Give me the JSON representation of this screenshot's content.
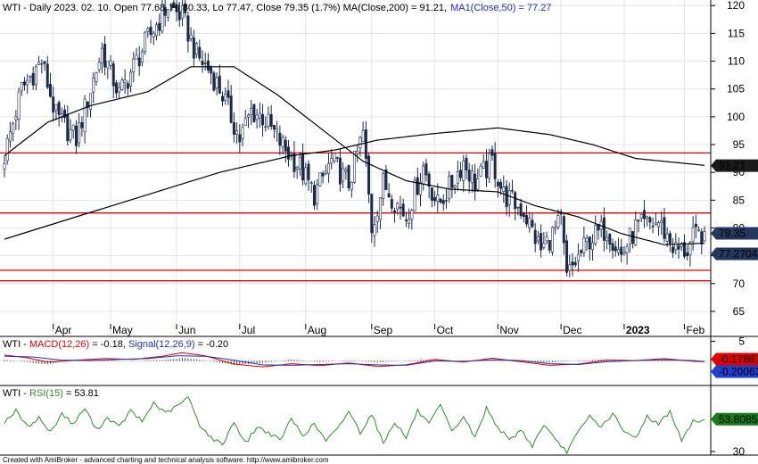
{
  "footer": "Created with AmiBroker - advanced charting and technical analysis software. http://www.amibroker.com",
  "chart_data": [
    {
      "type": "candlestick",
      "title_parts": {
        "symbol": "WTI",
        "info": " - Daily 2023. 02. 10. Open 77.68, Hi 80.33, Lo 77.47, Close 79.35 (1.7%) ",
        "ma200": "MA(Close,200) = 91.21,",
        "ma50": "MA1(Close,50) = 77.27"
      },
      "y_ticks": [
        120,
        115,
        110,
        105,
        100,
        95,
        90,
        85,
        80,
        75,
        70,
        65
      ],
      "ylim": [
        60.5,
        121
      ],
      "x_labels": [
        {
          "label": "Apr",
          "xi": 17
        },
        {
          "label": "May",
          "xi": 37
        },
        {
          "label": "Jun",
          "xi": 60
        },
        {
          "label": "Jul",
          "xi": 82
        },
        {
          "label": "Aug",
          "xi": 105
        },
        {
          "label": "Sep",
          "xi": 128
        },
        {
          "label": "Oct",
          "xi": 150
        },
        {
          "label": "Nov",
          "xi": 172
        },
        {
          "label": "Dec",
          "xi": 194
        },
        {
          "label": "2023",
          "xi": 216,
          "bold": true
        },
        {
          "label": "Feb",
          "xi": 237
        }
      ],
      "n_bars": 245,
      "anchors_index": [
        0,
        6,
        13,
        18,
        25,
        34,
        40,
        50,
        57,
        62,
        67,
        72,
        76,
        82,
        86,
        90,
        98,
        103,
        108,
        114,
        120,
        125,
        128,
        132,
        140,
        146,
        151,
        156,
        160,
        164,
        170,
        174,
        181,
        187,
        194,
        196,
        198,
        204,
        210,
        215,
        220,
        228,
        234,
        238,
        240,
        244
      ],
      "anchors_close": [
        93,
        105,
        110,
        100,
        96,
        112,
        104,
        114,
        120,
        118,
        111,
        108,
        104,
        96,
        101,
        100,
        94,
        91,
        86,
        92,
        88,
        97,
        80,
        88,
        82,
        91,
        84,
        88,
        92,
        88,
        92,
        86,
        83,
        76,
        81,
        71,
        73,
        78,
        80,
        75,
        80,
        81,
        76,
        76,
        78,
        79.35
      ],
      "ma200_x": [
        0,
        25,
        50,
        75,
        100,
        115,
        130,
        150,
        172,
        190,
        205,
        220,
        245
      ],
      "ma200_y": [
        78,
        82,
        86,
        90,
        93,
        94,
        95.8,
        97,
        98,
        96.8,
        95,
        92.5,
        91.21
      ],
      "ma50_x": [
        0,
        15,
        30,
        50,
        65,
        80,
        95,
        110,
        125,
        140,
        155,
        172,
        185,
        200,
        215,
        230,
        245
      ],
      "ma50_y": [
        93,
        99,
        102,
        104.5,
        109,
        109,
        104,
        98,
        92,
        88.5,
        87,
        86.5,
        84,
        82,
        79,
        77,
        77.27
      ],
      "hlines": [
        93.5,
        82.7,
        72.4,
        70.5
      ],
      "last_labels": [
        {
          "value": "91.21",
          "style": "dark"
        },
        {
          "value": "79.35",
          "style": "navy"
        },
        {
          "value": "77.2704",
          "style": "navy"
        }
      ]
    },
    {
      "type": "line",
      "title_parts": {
        "symbol": "WTI",
        "sep": " - ",
        "macd": "MACD(12,26)",
        "macd_val": " = -0.18, ",
        "signal": "Signal(12,26,9)",
        "signal_val": " = -0.20"
      },
      "y_ticks": [
        5
      ],
      "ylim": [
        -6,
        6
      ],
      "macd_x": [
        0,
        8,
        15,
        25,
        35,
        45,
        55,
        62,
        70,
        80,
        90,
        100,
        110,
        120,
        130,
        140,
        150,
        160,
        170,
        180,
        190,
        200,
        210,
        220,
        230,
        240,
        245
      ],
      "macd_y": [
        1.5,
        0.8,
        -0.3,
        0.2,
        0.6,
        0.4,
        1.2,
        2.1,
        1.3,
        -0.8,
        -1.5,
        -0.7,
        -1.2,
        -0.5,
        -1.4,
        -1.0,
        0.4,
        -0.3,
        0.7,
        -0.2,
        -1.1,
        -0.8,
        0.2,
        0.1,
        0.6,
        -0.1,
        -0.18
      ],
      "signal_x": [
        0,
        10,
        20,
        30,
        40,
        50,
        60,
        70,
        80,
        90,
        100,
        110,
        120,
        130,
        140,
        150,
        160,
        170,
        180,
        190,
        200,
        210,
        220,
        230,
        240,
        245
      ],
      "signal_y": [
        1.2,
        1.0,
        0.2,
        0.1,
        0.4,
        0.6,
        1.3,
        1.2,
        0.2,
        -1.0,
        -1.1,
        -0.9,
        -0.7,
        -1.0,
        -1.1,
        0.0,
        -0.1,
        0.3,
        0.1,
        -0.7,
        -0.9,
        -0.2,
        0.1,
        0.3,
        0.1,
        -0.2
      ],
      "last_labels": [
        {
          "value": "-0.17867",
          "style": "red"
        },
        {
          "value": "-0.20063",
          "style": "blue"
        }
      ]
    },
    {
      "type": "line",
      "title_parts": {
        "symbol": "WTI",
        "sep": " - ",
        "rsi": "RSI(15)",
        "rsi_val": " = 53.81"
      },
      "y_ticks": [
        30
      ],
      "ylim": [
        28,
        78
      ],
      "rsi_x": [
        0,
        4,
        8,
        12,
        16,
        20,
        24,
        28,
        32,
        36,
        40,
        44,
        48,
        52,
        56,
        60,
        64,
        68,
        72,
        76,
        80,
        84,
        88,
        92,
        96,
        100,
        104,
        108,
        112,
        116,
        120,
        124,
        128,
        132,
        136,
        140,
        144,
        148,
        152,
        156,
        160,
        164,
        168,
        172,
        176,
        180,
        184,
        188,
        192,
        196,
        200,
        204,
        208,
        212,
        216,
        220,
        224,
        228,
        232,
        236,
        240,
        245
      ],
      "rsi_y": [
        52,
        60,
        48,
        55,
        44,
        58,
        50,
        62,
        46,
        55,
        48,
        60,
        52,
        66,
        58,
        63,
        70,
        50,
        40,
        35,
        52,
        36,
        48,
        44,
        38,
        54,
        42,
        50,
        38,
        46,
        60,
        44,
        58,
        36,
        52,
        40,
        60,
        50,
        64,
        44,
        56,
        40,
        62,
        48,
        38,
        46,
        34,
        50,
        38,
        30,
        44,
        56,
        48,
        58,
        44,
        40,
        56,
        50,
        60,
        38,
        52,
        53.81
      ],
      "last_labels": [
        {
          "value": "53.8085",
          "style": "green"
        }
      ]
    }
  ]
}
